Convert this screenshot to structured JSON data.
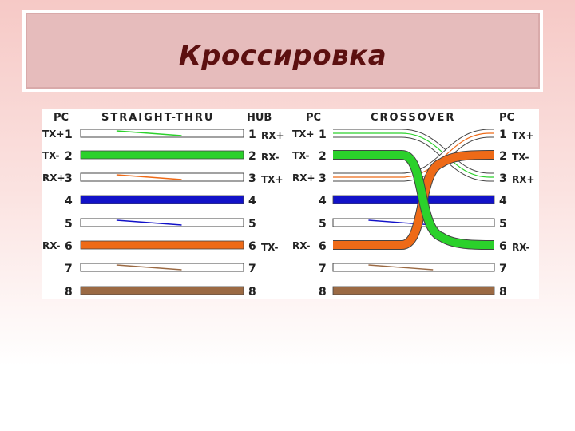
{
  "title": "Кроссировка",
  "colors": {
    "green": "#2bd12b",
    "blue": "#1212c8",
    "orange": "#ee6a17",
    "brown": "#9b6a44",
    "white_wire": "#ffffff",
    "title_text": "#5c1010"
  },
  "straight": {
    "header_left": "PC",
    "header_mid": "STRAIGHT-THRU",
    "header_right": "HUB",
    "left_pins": [
      "1",
      "2",
      "3",
      "4",
      "5",
      "6",
      "7",
      "8"
    ],
    "right_pins": [
      "1",
      "2",
      "3",
      "4",
      "5",
      "6",
      "7",
      "8"
    ],
    "left_signals": [
      "TX+",
      "TX-",
      "RX+",
      "",
      "",
      "RX-",
      "",
      ""
    ],
    "right_signals": [
      "RX+",
      "RX-",
      "TX+",
      "",
      "",
      "TX-",
      "",
      ""
    ]
  },
  "crossover": {
    "header_left": "PC",
    "header_mid": "CROSSOVER",
    "header_right": "PC",
    "left_pins": [
      "1",
      "2",
      "3",
      "4",
      "5",
      "6",
      "7",
      "8"
    ],
    "right_pins": [
      "1",
      "2",
      "3",
      "4",
      "5",
      "6",
      "7",
      "8"
    ],
    "left_signals": [
      "TX+",
      "TX-",
      "RX+",
      "",
      "",
      "RX-",
      "",
      ""
    ],
    "right_signals": [
      "TX+",
      "TX-",
      "RX+",
      "",
      "",
      "RX-",
      "",
      ""
    ]
  },
  "wires": [
    {
      "pin": "1",
      "color": "white-green"
    },
    {
      "pin": "2",
      "color": "green"
    },
    {
      "pin": "3",
      "color": "white-orange"
    },
    {
      "pin": "4",
      "color": "blue"
    },
    {
      "pin": "5",
      "color": "white-blue"
    },
    {
      "pin": "6",
      "color": "orange"
    },
    {
      "pin": "7",
      "color": "white-brown"
    },
    {
      "pin": "8",
      "color": "brown"
    }
  ]
}
